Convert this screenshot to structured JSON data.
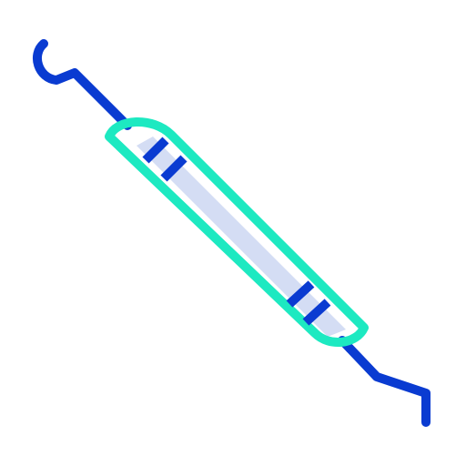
{
  "icon": {
    "name": "dental-probe-icon",
    "colors": {
      "background": "#ffffff",
      "outline": "#1de9c1",
      "metal": "#0a3bd1",
      "fill": "#d4ddf4"
    }
  }
}
